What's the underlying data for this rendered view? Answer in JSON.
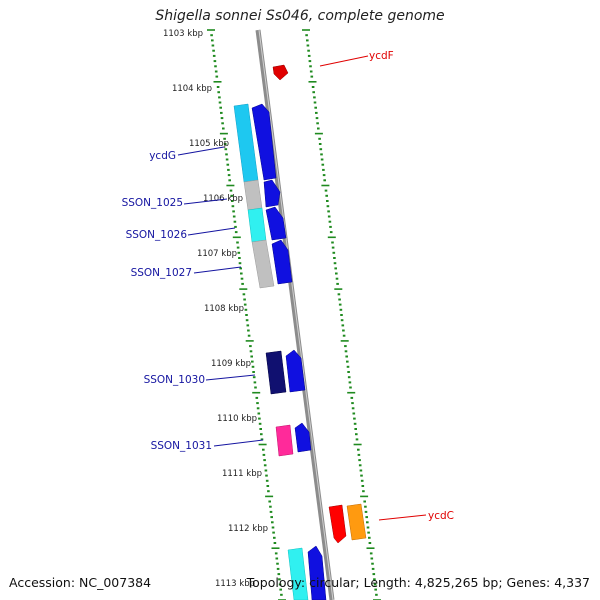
{
  "title": "Shigella sonnei Ss046, complete genome",
  "accession": "Accession: NC_007384",
  "summary": "Topology: circular; Length: 4,825,265 bp; Genes: 4,337",
  "colors": {
    "backbone": "#8c8c8c",
    "tick": "#1f8a1f",
    "label_forward": "#1414a0",
    "label_reverse": "#e00000"
  },
  "scale_labels": [
    "1103 kbp",
    "1104 kbp",
    "1105 kbp",
    "1106 kbp",
    "1107 kbp",
    "1108 kbp",
    "1109 kbp",
    "1110 kbp",
    "1111 kbp",
    "1112 kbp",
    "1113 kbp"
  ],
  "gene_labels": {
    "ycdF": "ycdF",
    "ycdG": "ycdG",
    "SSON_1025": "SSON_1025",
    "SSON_1026": "SSON_1026",
    "SSON_1027": "SSON_1027",
    "SSON_1030": "SSON_1030",
    "SSON_1031": "SSON_1031",
    "ycdC": "ycdC"
  }
}
